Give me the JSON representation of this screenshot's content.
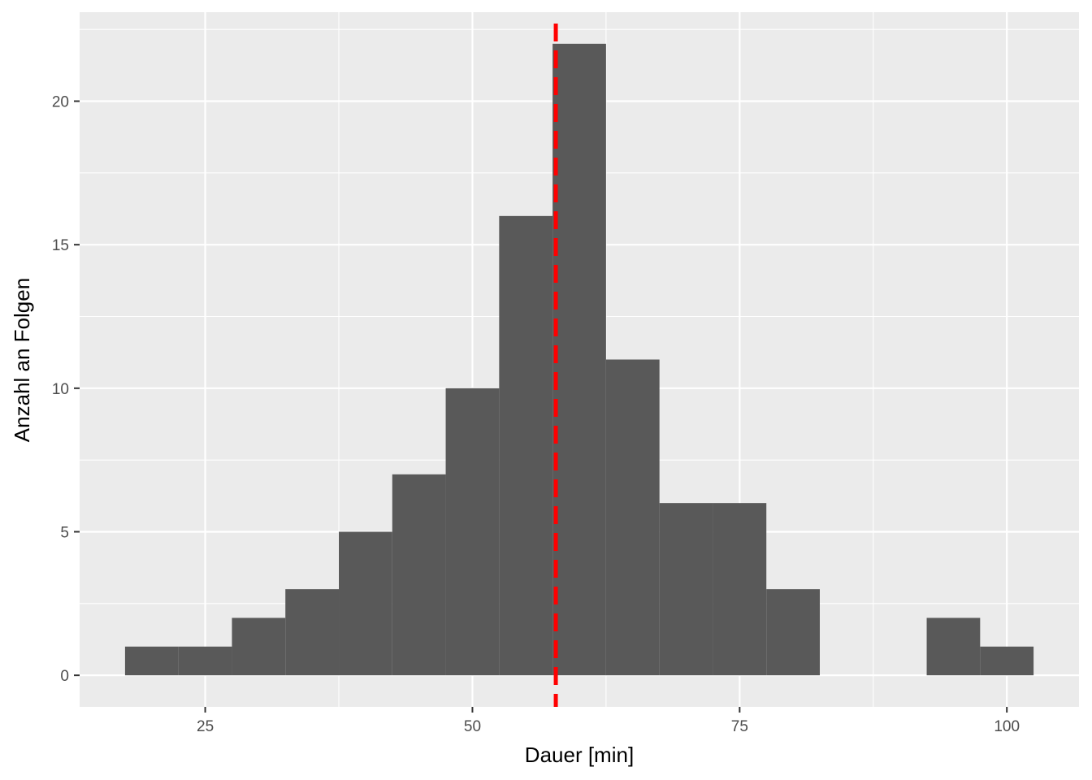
{
  "chart_data": {
    "type": "bar",
    "subtype": "histogram",
    "title": "",
    "xlabel": "Dauer [min]",
    "ylabel": "Anzahl an Folgen",
    "bin_width": 5,
    "bins": [
      {
        "start": 17.5,
        "end": 22.5,
        "count": 1
      },
      {
        "start": 22.5,
        "end": 27.5,
        "count": 1
      },
      {
        "start": 27.5,
        "end": 32.5,
        "count": 2
      },
      {
        "start": 32.5,
        "end": 37.5,
        "count": 3
      },
      {
        "start": 37.5,
        "end": 42.5,
        "count": 5
      },
      {
        "start": 42.5,
        "end": 47.5,
        "count": 7
      },
      {
        "start": 47.5,
        "end": 52.5,
        "count": 10
      },
      {
        "start": 52.5,
        "end": 57.5,
        "count": 16
      },
      {
        "start": 57.5,
        "end": 62.5,
        "count": 22
      },
      {
        "start": 62.5,
        "end": 67.5,
        "count": 11
      },
      {
        "start": 67.5,
        "end": 72.5,
        "count": 6
      },
      {
        "start": 72.5,
        "end": 77.5,
        "count": 6
      },
      {
        "start": 77.5,
        "end": 82.5,
        "count": 3
      },
      {
        "start": 82.5,
        "end": 87.5,
        "count": 0
      },
      {
        "start": 87.5,
        "end": 92.5,
        "count": 0
      },
      {
        "start": 92.5,
        "end": 97.5,
        "count": 2
      },
      {
        "start": 97.5,
        "end": 102.5,
        "count": 1
      }
    ],
    "xlim": [
      13.25,
      106.75
    ],
    "ylim": [
      -1.1,
      23.1
    ],
    "x_ticks": [
      25,
      50,
      75,
      100
    ],
    "y_ticks": [
      0,
      5,
      10,
      15,
      20
    ],
    "grid": true,
    "reference_line": {
      "x": 57.8,
      "style": "dashed",
      "color": "#ff0000"
    },
    "colors": {
      "bar": "#595959",
      "panel": "#ebebeb",
      "grid": "#ffffff"
    }
  }
}
